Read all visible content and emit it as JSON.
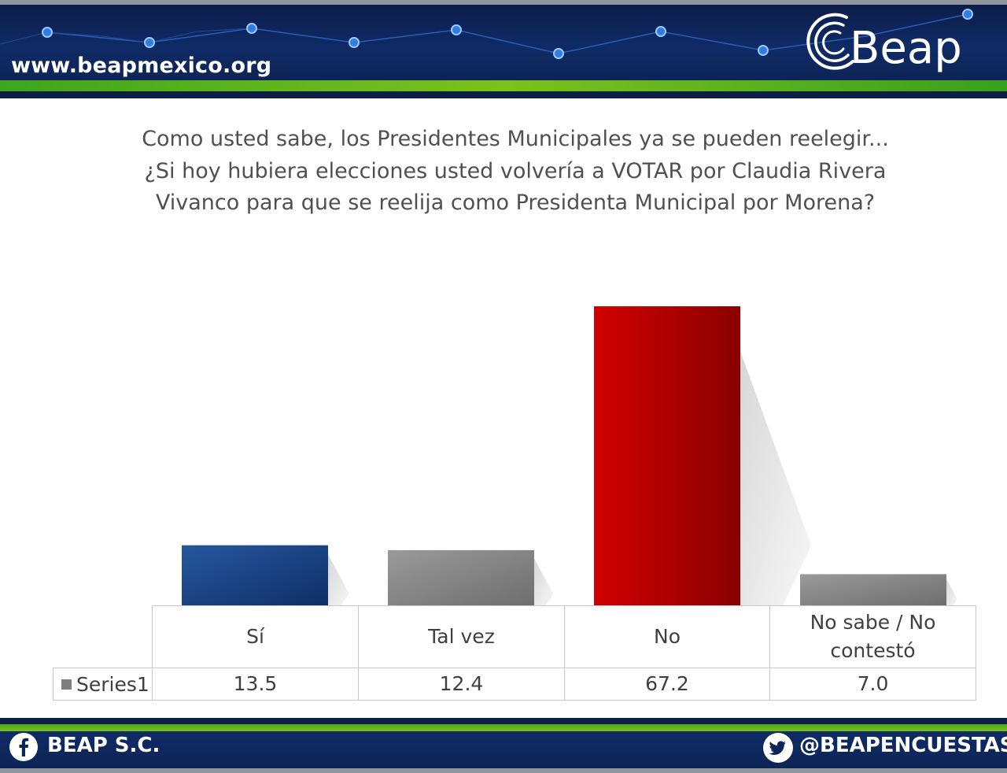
{
  "header": {
    "website": "www.beapmexico.org",
    "logo_text": "Beap"
  },
  "question": {
    "line1": "Como usted sabe, los Presidentes Municipales ya se pueden reelegir...",
    "line2": "¿Si hoy hubiera elecciones usted volvería a VOTAR por Claudia Rivera",
    "line3": "Vivanco para que se reelija como Presidenta Municipal por Morena?"
  },
  "chart_data": {
    "type": "bar",
    "categories": [
      "Sí",
      "Tal vez",
      "No",
      "No sabe / No contestó"
    ],
    "series": [
      {
        "name": "Series1",
        "values": [
          13.5,
          12.4,
          67.2,
          7.0
        ],
        "labels": [
          "13.5",
          "12.4",
          "67.2",
          "7.0"
        ]
      }
    ],
    "bar_colors": [
      "#1c4587",
      "#8a8a8a",
      "#c00000",
      "#8a8a8a"
    ],
    "ylim": [
      0,
      75
    ],
    "grid": false,
    "legend": "data-table"
  },
  "footer": {
    "facebook": "BEAP S.C.",
    "twitter": "@BEAPENCUESTAS",
    "facebook_icon": "facebook-icon",
    "twitter_icon": "twitter-icon"
  }
}
